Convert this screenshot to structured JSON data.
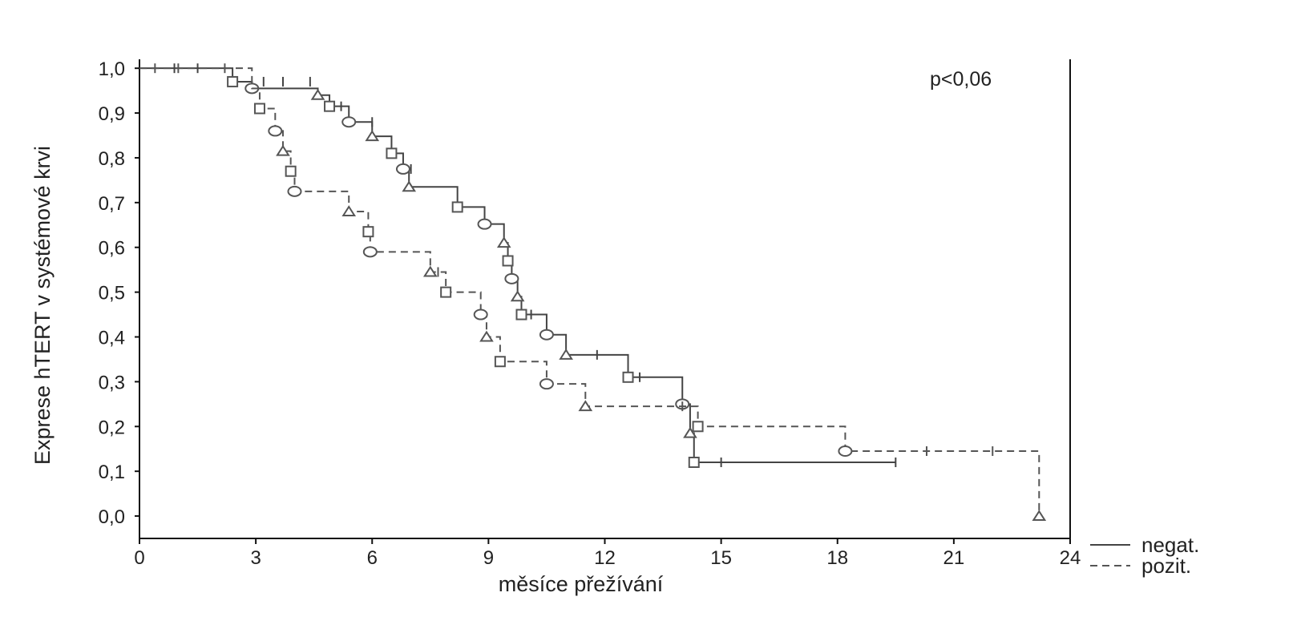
{
  "chart_data": {
    "type": "line",
    "subtype": "kaplan-meier step curves",
    "xlabel": "měsíce přežívání",
    "ylabel": "Exprese hTERT v systémové krvi",
    "annotation": "p<0,06",
    "xlim": [
      0,
      24
    ],
    "ylim": [
      -0.05,
      1.02
    ],
    "x_ticks": [
      0,
      3,
      6,
      9,
      12,
      15,
      18,
      21,
      24
    ],
    "x_tick_labels": [
      "0",
      "3",
      "6",
      "9",
      "12",
      "15",
      "18",
      "21",
      "24"
    ],
    "y_ticks": [
      1.0,
      0.9,
      0.8,
      0.7,
      0.6,
      0.5,
      0.4,
      0.3,
      0.2,
      0.1,
      0.0
    ],
    "y_tick_labels": [
      "1,0",
      "0,9",
      "0,8",
      "0,7",
      "0,6",
      "0,5",
      "0,4",
      "0,3",
      "0,2",
      "0,1",
      "0,0"
    ],
    "legend_position": "right of x-axis",
    "series": [
      {
        "name": "negat.",
        "style": "solid",
        "color": "#444444",
        "steps": [
          [
            0,
            1.0
          ],
          [
            2.4,
            0.97
          ],
          [
            2.9,
            0.955
          ],
          [
            4.6,
            0.94
          ],
          [
            4.9,
            0.915
          ],
          [
            5.4,
            0.88
          ],
          [
            6.0,
            0.848
          ],
          [
            6.5,
            0.81
          ],
          [
            6.8,
            0.775
          ],
          [
            6.95,
            0.735
          ],
          [
            8.2,
            0.69
          ],
          [
            8.9,
            0.652
          ],
          [
            9.4,
            0.61
          ],
          [
            9.5,
            0.57
          ],
          [
            9.6,
            0.53
          ],
          [
            9.75,
            0.49
          ],
          [
            9.85,
            0.45
          ],
          [
            10.5,
            0.405
          ],
          [
            11.0,
            0.36
          ],
          [
            12.6,
            0.31
          ],
          [
            14.0,
            0.25
          ],
          [
            14.2,
            0.185
          ],
          [
            14.3,
            0.12
          ],
          [
            19.5,
            0.12
          ]
        ],
        "events": [
          [
            2.4,
            0.97
          ],
          [
            2.9,
            0.955
          ],
          [
            4.6,
            0.94
          ],
          [
            4.9,
            0.915
          ],
          [
            5.4,
            0.88
          ],
          [
            6.0,
            0.848
          ],
          [
            6.5,
            0.81
          ],
          [
            6.8,
            0.775
          ],
          [
            6.95,
            0.735
          ],
          [
            8.2,
            0.69
          ],
          [
            8.9,
            0.652
          ],
          [
            9.4,
            0.61
          ],
          [
            9.5,
            0.57
          ],
          [
            9.6,
            0.53
          ],
          [
            9.75,
            0.49
          ],
          [
            9.85,
            0.45
          ],
          [
            10.5,
            0.405
          ],
          [
            11.0,
            0.36
          ],
          [
            12.6,
            0.31
          ],
          [
            14.0,
            0.25
          ],
          [
            14.2,
            0.185
          ],
          [
            14.3,
            0.12
          ]
        ],
        "censored": [
          [
            0.9,
            1.0
          ],
          [
            1.5,
            1.0
          ],
          [
            3.2,
            0.97
          ],
          [
            3.7,
            0.97
          ],
          [
            4.4,
            0.97
          ],
          [
            5.2,
            0.915
          ],
          [
            6.0,
            0.88
          ],
          [
            7.0,
            0.775
          ],
          [
            10.1,
            0.45
          ],
          [
            11.8,
            0.36
          ],
          [
            12.9,
            0.31
          ],
          [
            15.0,
            0.12
          ],
          [
            19.5,
            0.12
          ]
        ]
      },
      {
        "name": "pozit.",
        "style": "dashed",
        "color": "#555555",
        "steps": [
          [
            0,
            1.0
          ],
          [
            2.9,
            0.955
          ],
          [
            3.1,
            0.91
          ],
          [
            3.5,
            0.86
          ],
          [
            3.7,
            0.815
          ],
          [
            3.9,
            0.77
          ],
          [
            4.0,
            0.725
          ],
          [
            5.4,
            0.68
          ],
          [
            5.9,
            0.635
          ],
          [
            5.95,
            0.59
          ],
          [
            7.5,
            0.545
          ],
          [
            7.9,
            0.5
          ],
          [
            8.8,
            0.45
          ],
          [
            8.95,
            0.4
          ],
          [
            9.3,
            0.345
          ],
          [
            10.5,
            0.295
          ],
          [
            11.5,
            0.245
          ],
          [
            14.4,
            0.2
          ],
          [
            18.2,
            0.145
          ],
          [
            23.2,
            0.0
          ]
        ],
        "events": [
          [
            3.1,
            0.91
          ],
          [
            3.5,
            0.86
          ],
          [
            3.7,
            0.815
          ],
          [
            3.9,
            0.77
          ],
          [
            4.0,
            0.725
          ],
          [
            5.4,
            0.68
          ],
          [
            5.9,
            0.635
          ],
          [
            5.95,
            0.59
          ],
          [
            7.5,
            0.545
          ],
          [
            7.9,
            0.5
          ],
          [
            8.8,
            0.45
          ],
          [
            8.95,
            0.4
          ],
          [
            9.3,
            0.345
          ],
          [
            10.5,
            0.295
          ],
          [
            11.5,
            0.245
          ],
          [
            14.4,
            0.2
          ],
          [
            18.2,
            0.145
          ],
          [
            23.2,
            0.0
          ]
        ],
        "censored": [
          [
            0.4,
            1.0
          ],
          [
            1.0,
            1.0
          ],
          [
            2.2,
            1.0
          ],
          [
            7.7,
            0.545
          ],
          [
            14.0,
            0.245
          ],
          [
            20.3,
            0.145
          ],
          [
            22.0,
            0.145
          ]
        ]
      }
    ]
  }
}
